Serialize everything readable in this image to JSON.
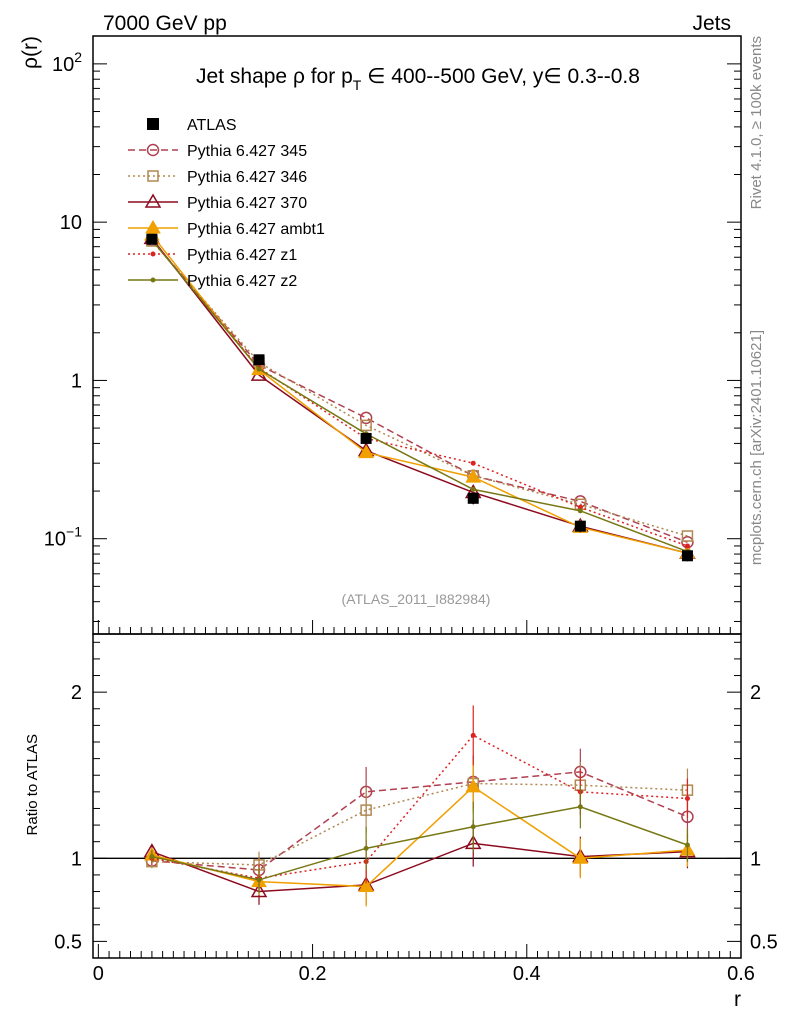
{
  "header": {
    "left": "7000 GeV pp",
    "right": "Jets"
  },
  "side_labels": {
    "rivet": "Rivet 4.1.0, ≥ 100k events",
    "mcplots": "mcplots.cern.ch [arXiv:2401.10621]"
  },
  "chart_data": {
    "type": "line",
    "title": "Jet shape ρ for p_T ∈ 400--500 GeV, y∈ 0.3--0.8",
    "title_parts": {
      "a": "Jet shape ρ for p",
      "sub": "T",
      "b": " ∈ 400--500 GeV, y∈ 0.3--0.8"
    },
    "analysis_id": "(ATLAS_2011_I882984)",
    "xlabel": "r",
    "ylabel": "ρ(r)",
    "ratio_ylabel": "Ratio to ATLAS",
    "xlim": [
      -0.005,
      0.6
    ],
    "ylim": [
      0.025,
      150
    ],
    "yscale": "log",
    "ratio_ylim": [
      0.4,
      2.35
    ],
    "x_ticks": [
      {
        "value": 0,
        "label": "0"
      },
      {
        "value": 0.2,
        "label": "0.2"
      },
      {
        "value": 0.4,
        "label": "0.4"
      },
      {
        "value": 0.6,
        "label": "0.6"
      }
    ],
    "y_ticks": [
      {
        "value": 0.1,
        "base": "10",
        "exp": "−1"
      },
      {
        "value": 1,
        "base": "1",
        "exp": ""
      },
      {
        "value": 10,
        "base": "10",
        "exp": ""
      },
      {
        "value": 100,
        "base": "10",
        "exp": "2"
      }
    ],
    "ratio_ticks": [
      {
        "value": 0.5,
        "label": "0.5"
      },
      {
        "value": 1,
        "label": "1"
      },
      {
        "value": 2,
        "label": "2"
      }
    ],
    "x": [
      0.05,
      0.15,
      0.25,
      0.35,
      0.45,
      0.55
    ],
    "data": {
      "name": "ATLAS",
      "values": [
        7.8,
        1.35,
        0.43,
        0.18,
        0.12,
        0.078
      ],
      "errors": [
        0.3,
        0.07,
        0.03,
        0.015,
        0.01,
        0.006
      ]
    },
    "series": [
      {
        "name": "Pythia 6.427 345",
        "color": "#b04050",
        "dash": "7,4",
        "marker": "circle",
        "values": [
          7.7,
          1.25,
          0.58,
          0.25,
          0.172,
          0.095
        ],
        "ratio": [
          0.985,
          0.93,
          1.4,
          1.46,
          1.52,
          1.25
        ],
        "ratio_err": [
          0.04,
          0.08,
          0.15,
          0.16,
          0.14,
          0.12
        ]
      },
      {
        "name": "Pythia 6.427 346",
        "color": "#b08850",
        "dash": "2,3",
        "marker": "square",
        "values": [
          7.6,
          1.3,
          0.52,
          0.25,
          0.165,
          0.104
        ],
        "ratio": [
          0.98,
          0.96,
          1.29,
          1.45,
          1.44,
          1.41
        ],
        "ratio_err": [
          0.04,
          0.08,
          0.14,
          0.16,
          0.14,
          0.13
        ]
      },
      {
        "name": "Pythia 6.427 370",
        "color": "#8b0a1e",
        "dash": "",
        "marker": "triangle",
        "values": [
          7.9,
          1.08,
          0.36,
          0.196,
          0.12,
          0.081
        ],
        "ratio": [
          1.04,
          0.8,
          0.84,
          1.09,
          1.01,
          1.04
        ],
        "ratio_err": [
          0.04,
          0.08,
          0.12,
          0.14,
          0.12,
          0.1
        ]
      },
      {
        "name": "Pythia 6.427 ambt1",
        "color": "#f0a000",
        "dash": "",
        "marker": "triangle-filled",
        "values": [
          8.3,
          1.17,
          0.35,
          0.245,
          0.118,
          0.081
        ],
        "ratio": [
          1.02,
          0.86,
          0.83,
          1.43,
          1.0,
          1.05
        ],
        "ratio_err": [
          0.04,
          0.08,
          0.12,
          0.16,
          0.12,
          0.1
        ]
      },
      {
        "name": "Pythia 6.427 z1",
        "color": "#dd2222",
        "dash": "2,3",
        "marker": "dot",
        "values": [
          7.7,
          1.2,
          0.43,
          0.3,
          0.158,
          0.09
        ],
        "ratio": [
          1.0,
          0.88,
          0.98,
          1.74,
          1.4,
          1.36
        ],
        "ratio_err": [
          0.04,
          0.08,
          0.13,
          0.18,
          0.14,
          0.12
        ]
      },
      {
        "name": "Pythia 6.427 z2",
        "color": "#777714",
        "dash": "",
        "marker": "dot",
        "values": [
          7.7,
          1.18,
          0.46,
          0.205,
          0.15,
          0.083
        ],
        "ratio": [
          1.01,
          0.87,
          1.06,
          1.19,
          1.31,
          1.08
        ],
        "ratio_err": [
          0.04,
          0.08,
          0.13,
          0.15,
          0.13,
          0.1
        ]
      }
    ]
  }
}
